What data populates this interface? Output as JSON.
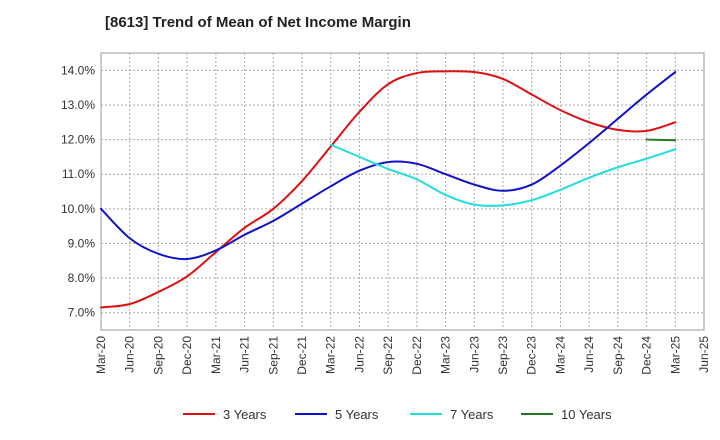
{
  "chart_data": {
    "type": "line",
    "title": "[8613]  Trend of Mean of Net Income Margin",
    "xlabel": "",
    "ylabel": "",
    "x_ticks": [
      "Mar-20",
      "Jun-20",
      "Sep-20",
      "Dec-20",
      "Mar-21",
      "Jun-21",
      "Sep-21",
      "Dec-21",
      "Mar-22",
      "Jun-22",
      "Sep-22",
      "Dec-22",
      "Mar-23",
      "Jun-23",
      "Sep-23",
      "Dec-23",
      "Mar-24",
      "Jun-24",
      "Sep-24",
      "Dec-24",
      "Mar-25",
      "Jun-25"
    ],
    "y_ticks": [
      "7.0%",
      "8.0%",
      "9.0%",
      "10.0%",
      "11.0%",
      "12.0%",
      "13.0%",
      "14.0%"
    ],
    "ylim": [
      6.5,
      14.5
    ],
    "grid": true,
    "legend_position": "bottom",
    "series": [
      {
        "name": "3 Years",
        "color": "#dd1111",
        "x": [
          "Mar-20",
          "Jun-20",
          "Sep-20",
          "Dec-20",
          "Mar-21",
          "Jun-21",
          "Sep-21",
          "Dec-21",
          "Mar-22",
          "Jun-22",
          "Sep-22",
          "Dec-22",
          "Mar-23",
          "Jun-23",
          "Sep-23",
          "Dec-23",
          "Mar-24",
          "Jun-24",
          "Sep-24",
          "Dec-24",
          "Mar-25"
        ],
        "values": [
          7.15,
          7.25,
          7.6,
          8.05,
          8.75,
          9.45,
          10.0,
          10.8,
          11.8,
          12.8,
          13.6,
          13.92,
          13.97,
          13.95,
          13.75,
          13.3,
          12.85,
          12.5,
          12.28,
          12.25,
          12.5
        ]
      },
      {
        "name": "5 Years",
        "color": "#1111cc",
        "x": [
          "Mar-20",
          "Jun-20",
          "Sep-20",
          "Dec-20",
          "Mar-21",
          "Jun-21",
          "Sep-21",
          "Dec-21",
          "Mar-22",
          "Jun-22",
          "Sep-22",
          "Dec-22",
          "Mar-23",
          "Jun-23",
          "Sep-23",
          "Dec-23",
          "Mar-24",
          "Jun-24",
          "Sep-24",
          "Dec-24",
          "Mar-25"
        ],
        "values": [
          10.0,
          9.15,
          8.7,
          8.55,
          8.8,
          9.25,
          9.65,
          10.15,
          10.65,
          11.1,
          11.35,
          11.3,
          11.0,
          10.7,
          10.52,
          10.7,
          11.25,
          11.9,
          12.6,
          13.3,
          13.95
        ]
      },
      {
        "name": "7 Years",
        "color": "#22dddd",
        "x": [
          "Mar-22",
          "Jun-22",
          "Sep-22",
          "Dec-22",
          "Mar-23",
          "Jun-23",
          "Sep-23",
          "Dec-23",
          "Mar-24",
          "Jun-24",
          "Sep-24",
          "Dec-24",
          "Mar-25"
        ],
        "values": [
          11.85,
          11.5,
          11.15,
          10.85,
          10.4,
          10.12,
          10.1,
          10.25,
          10.55,
          10.9,
          11.2,
          11.45,
          11.72
        ]
      },
      {
        "name": "10 Years",
        "color": "#227722",
        "x": [
          "Dec-24",
          "Mar-25"
        ],
        "values": [
          12.0,
          11.98
        ]
      }
    ]
  }
}
